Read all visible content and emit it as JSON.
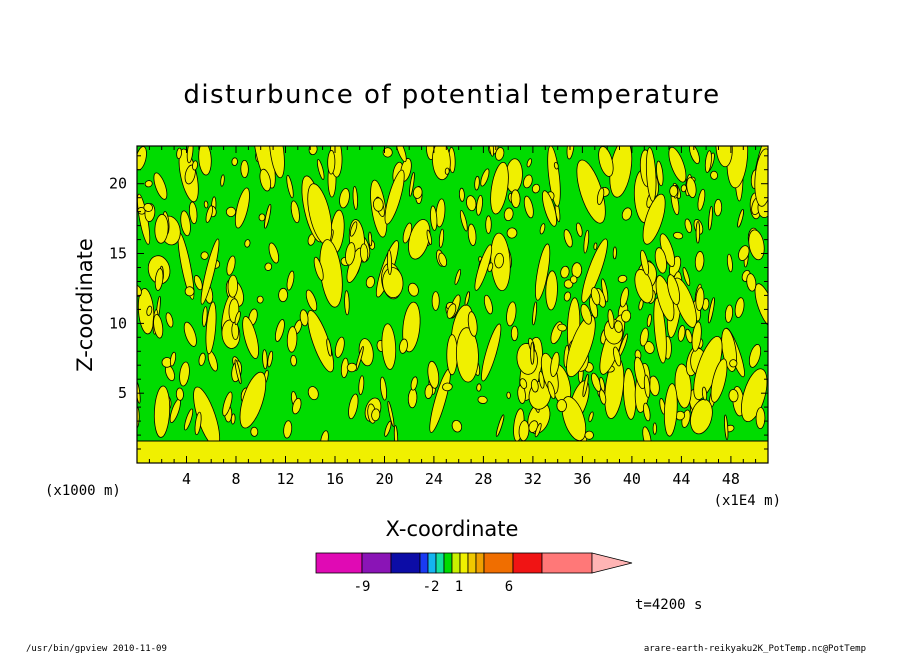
{
  "chart_data": {
    "type": "heatmap",
    "title": "disturbunce of potential temperature",
    "xlabel": "X-coordinate",
    "ylabel": "Z-coordinate",
    "x_unit": "(x1E4 m)",
    "y_unit": "(x1000 m)",
    "x_ticks": [
      4,
      8,
      12,
      16,
      20,
      24,
      28,
      32,
      36,
      40,
      44,
      48
    ],
    "y_ticks": [
      5,
      10,
      15,
      20
    ],
    "xlim": [
      0,
      51
    ],
    "ylim": [
      0,
      22.7
    ],
    "time_label": "t=4200 s",
    "colorbar": {
      "colors": [
        "#e00ab4",
        "#8a14b6",
        "#0c0ca6",
        "#1a3af2",
        "#14b4f0",
        "#14e0a0",
        "#00dc00",
        "#c8f000",
        "#f0f000",
        "#f0c800",
        "#f0a000",
        "#f06e00",
        "#f01414",
        "#ff7878",
        "#ffb4b4"
      ],
      "tick_labels": [
        "-9",
        "-2",
        "1",
        "6"
      ]
    },
    "background_color": "#00dc00",
    "positive_color": "#f0f000"
  },
  "footer": {
    "left": "/usr/bin/gpview  2010-11-09",
    "right": "arare-earth-reikyaku2K_PotTemp.nc@PotTemp"
  }
}
